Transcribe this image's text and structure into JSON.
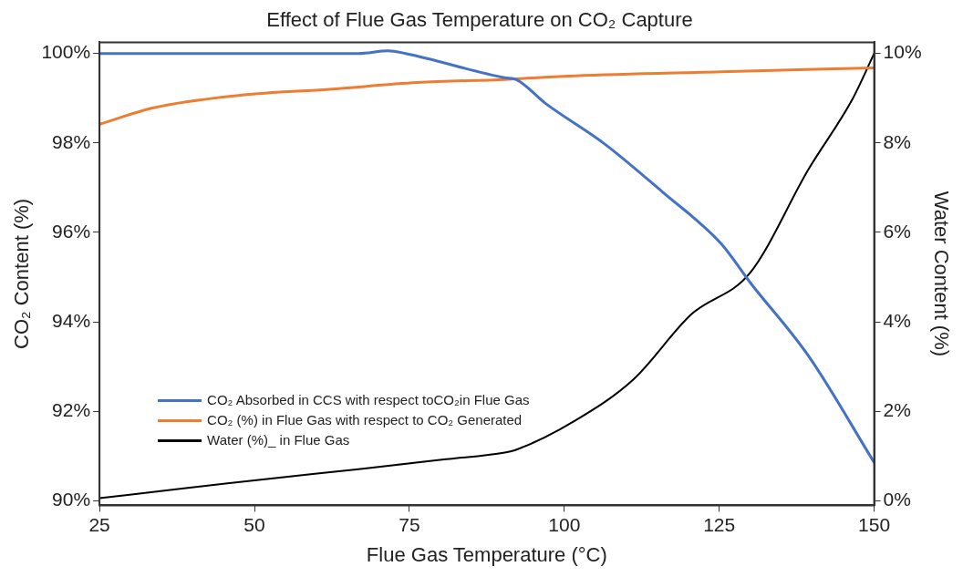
{
  "chart_data": {
    "type": "line",
    "title": "Effect of Flue Gas Temperature on CO₂ Capture",
    "xlabel": "Flue Gas Temperature (°C)",
    "ylabel": "CO₂ Content (%)",
    "y2label": "Water Content (%)",
    "xlim": [
      25,
      150
    ],
    "xticks": [
      25,
      50,
      75,
      100,
      125,
      150
    ],
    "ylim": [
      89.9,
      100.25
    ],
    "yticks": [
      {
        "value": 90,
        "label": "90%"
      },
      {
        "value": 92,
        "label": "92%"
      },
      {
        "value": 94,
        "label": "94%"
      },
      {
        "value": 96,
        "label": "96%"
      },
      {
        "value": 98,
        "label": "98%"
      },
      {
        "value": 100,
        "label": "100%"
      }
    ],
    "y2lim": [
      -0.1,
      10.25
    ],
    "y2ticks": [
      {
        "value": 0,
        "label": "0%"
      },
      {
        "value": 2,
        "label": "2%"
      },
      {
        "value": 4,
        "label": "4%"
      },
      {
        "value": 6,
        "label": "6%"
      },
      {
        "value": 8,
        "label": "8%"
      },
      {
        "value": 10,
        "label": "10%"
      }
    ],
    "grid": false,
    "legend": "bottom left",
    "marker": "none",
    "line_style": "solid",
    "series": [
      {
        "name": "CO₂ Absorbed in CCS with respect toCO₂in Flue Gas",
        "color": "#4472c4",
        "x": [
          25,
          66.8,
          71.6,
          74.4,
          90.4,
          92.2,
          97,
          106.4,
          115.8,
          125.3,
          130,
          139.4,
          150
        ],
        "values": [
          100,
          100,
          100.06,
          100,
          99.46,
          99.42,
          98.88,
          97.99,
          96.91,
          95.75,
          94.88,
          93.24,
          90.86
        ]
      },
      {
        "name": "CO₂ (%) in Flue Gas with respect to CO₂ Generated",
        "color": "#ed7d31",
        "x": [
          25,
          33.9,
          48,
          62.1,
          76.3,
          90.4,
          101.7,
          125.3,
          150
        ],
        "values": [
          98.42,
          98.79,
          99.07,
          99.2,
          99.35,
          99.42,
          99.5,
          99.59,
          99.68
        ]
      },
      {
        "name": "Water (%)_ in Flue Gas",
        "color": "#000000",
        "axis": "y2",
        "x": [
          25,
          38.6,
          52.7,
          66.8,
          80.9,
          90.4,
          92.2,
          101.7,
          111.2,
          120.5,
          130,
          139.4,
          146.5,
          150
        ],
        "values": [
          0.06,
          0.28,
          0.5,
          0.71,
          0.93,
          1.08,
          1.14,
          1.79,
          2.72,
          4.17,
          5.1,
          7.41,
          8.98,
          10
        ]
      }
    ]
  }
}
